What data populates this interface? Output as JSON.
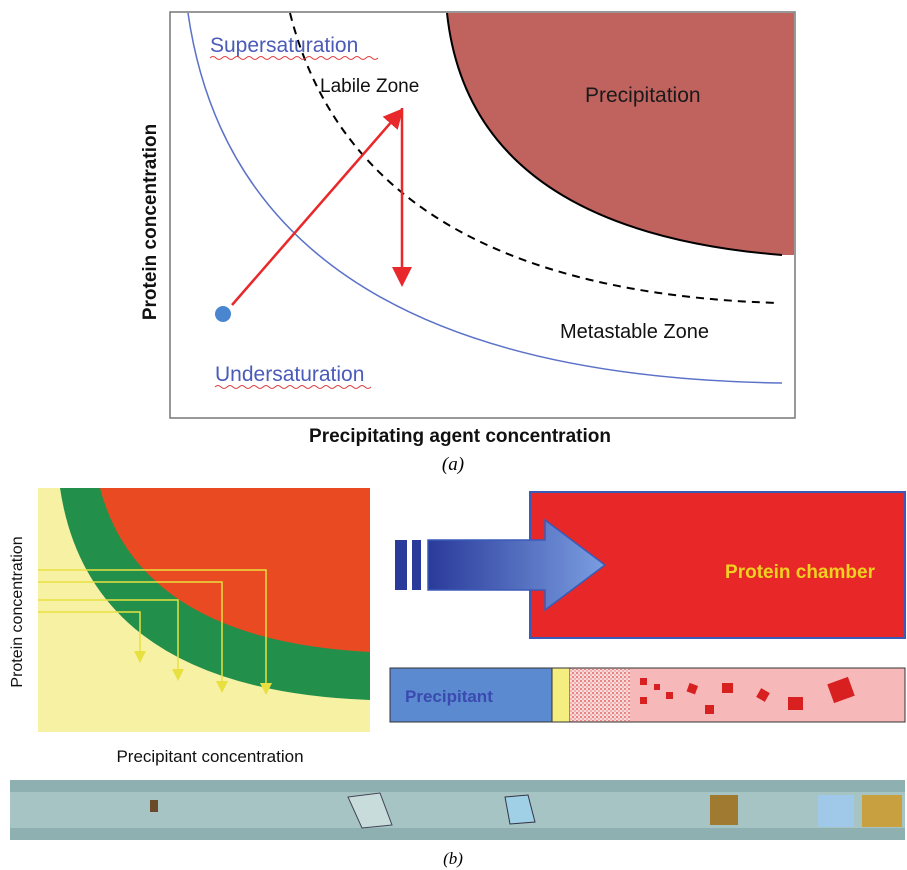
{
  "panel_a": {
    "supersaturation": "Supersaturation",
    "labile_zone": "Labile Zone",
    "precipitation": "Precipitation",
    "metastable_zone": "Metastable Zone",
    "undersaturation": "Undersaturation",
    "y_label": "Protein  concentration",
    "x_label": "Precipitating  agent  concentration",
    "caption": "(a)"
  },
  "panel_b": {
    "y_label": "Protein concentration",
    "x_label": "Precipitant concentration",
    "chamber": "Protein chamber",
    "precipitant": "Precipitant",
    "caption": "(b)"
  }
}
